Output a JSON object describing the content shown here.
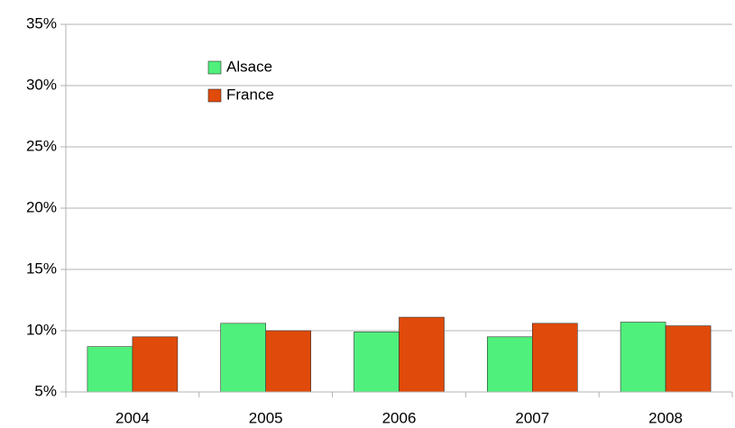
{
  "chart_data": {
    "type": "bar",
    "categories": [
      "2004",
      "2005",
      "2006",
      "2007",
      "2008"
    ],
    "series": [
      {
        "name": "Alsace",
        "color": "#50f07c",
        "values": [
          8.7,
          10.6,
          9.9,
          9.5,
          10.7
        ]
      },
      {
        "name": "France",
        "color": "#e04a0a",
        "values": [
          9.5,
          10.0,
          11.1,
          10.6,
          10.4
        ]
      }
    ],
    "ylim": [
      5,
      35
    ],
    "yticks": [
      {
        "value": 5,
        "label": "5%"
      },
      {
        "value": 10,
        "label": "10%"
      },
      {
        "value": 15,
        "label": "15%"
      },
      {
        "value": 20,
        "label": "20%"
      },
      {
        "value": 25,
        "label": "25%"
      },
      {
        "value": 30,
        "label": "30%"
      },
      {
        "value": 35,
        "label": "35%"
      }
    ],
    "grid": true,
    "legend": "top-left"
  }
}
